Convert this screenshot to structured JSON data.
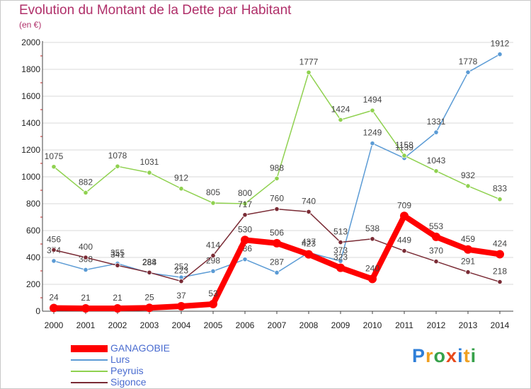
{
  "chart_data": {
    "type": "line",
    "title": "Evolution du Montant de la Dette par Habitant",
    "subtitle": "(en €)",
    "x": [
      "2000",
      "2001",
      "2002",
      "2003",
      "2004",
      "2005",
      "2006",
      "2007",
      "2008",
      "2009",
      "2010",
      "2011",
      "2012",
      "2013",
      "2014"
    ],
    "ylim": [
      0,
      2000
    ],
    "yticks": [
      0,
      200,
      400,
      600,
      800,
      1000,
      1200,
      1400,
      1600,
      1800,
      2000
    ],
    "grid": true,
    "legend_position": "bottom-left",
    "series": [
      {
        "name": "Lurs",
        "color": "#5b9bd5",
        "values": [
          374,
          308,
          355,
          284,
          252,
          298,
          386,
          287,
          437,
          373,
          1249,
          1139,
          1331,
          1778,
          1912
        ]
      },
      {
        "name": "Peyruis",
        "color": "#8fd14f",
        "values": [
          1075,
          882,
          1078,
          1031,
          912,
          805,
          800,
          988,
          1777,
          1424,
          1494,
          1158,
          1043,
          932,
          833
        ]
      },
      {
        "name": "Sigonce",
        "color": "#7a2b35",
        "values": [
          456,
          400,
          341,
          288,
          223,
          414,
          717,
          760,
          740,
          513,
          538,
          449,
          370,
          291,
          218
        ]
      },
      {
        "name": "GANAGOBIE",
        "color": "#ff0000",
        "values": [
          24,
          21,
          21,
          25,
          37,
          53,
          530,
          506,
          423,
          323,
          240,
          709,
          553,
          459,
          424
        ]
      }
    ]
  },
  "legend": [
    {
      "name": "GANAGOBIE",
      "color": "#ff0000",
      "width": 10
    },
    {
      "name": "Lurs",
      "color": "#5b9bd5",
      "width": 2
    },
    {
      "name": "Peyruis",
      "color": "#8fd14f",
      "width": 2
    },
    {
      "name": "Sigonce",
      "color": "#7a2b35",
      "width": 2
    }
  ],
  "logo": {
    "letters": [
      "P",
      "r",
      "o",
      "x",
      "i",
      "t",
      "i"
    ],
    "colors": [
      "#2f7fd8",
      "#f0a020",
      "#36a14a",
      "#e84b1c",
      "#2f7fd8",
      "#f0a020",
      "#36a14a"
    ]
  }
}
